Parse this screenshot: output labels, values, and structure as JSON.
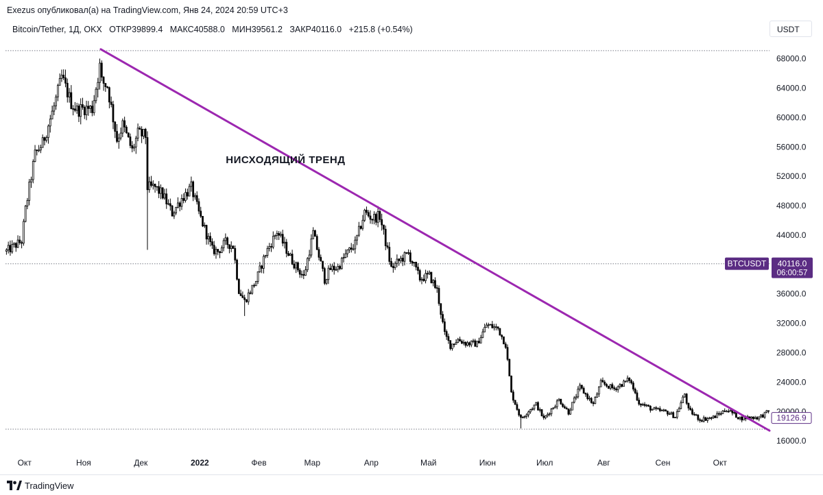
{
  "header": {
    "publisher": "Exezus опубликовал(а) на TradingView.com, Янв 24, 2024 20:59 UTC+3"
  },
  "legend": {
    "symbol": "Bitcoin/Tether, 1Д, OKX",
    "open_label": "ОТКР",
    "open": "39899.4",
    "high_label": "МАКС",
    "high": "40588.0",
    "low_label": "МИН",
    "low": "39561.2",
    "close_label": "ЗАКР",
    "close": "40116.0",
    "change": "+215.8 (+0.54%)"
  },
  "currency": "USDT",
  "colors": {
    "candle": "#000000",
    "trendline": "#9c27b0",
    "badge": "#5b2c83",
    "gridline": "#787b86",
    "text": "#131722"
  },
  "chart_data": {
    "type": "candlestick",
    "y_axis": {
      "ticks": [
        16000,
        20000,
        24000,
        28000,
        32000,
        36000,
        40000,
        44000,
        48000,
        52000,
        56000,
        60000,
        64000,
        68000
      ],
      "tick_labels": [
        "16000.0",
        "20000.0",
        "24000.0",
        "28000.0",
        "32000.0",
        "36000.0",
        "",
        "44000.0",
        "48000.0",
        "52000.0",
        "56000.0",
        "60000.0",
        "64000.0",
        "68000.0"
      ],
      "range": [
        14800,
        70400
      ]
    },
    "x_axis": {
      "labels": [
        {
          "text": "Окт",
          "date": "2021-10-01"
        },
        {
          "text": "Ноя",
          "date": "2021-11-01"
        },
        {
          "text": "Дек",
          "date": "2021-12-01"
        },
        {
          "text": "2022",
          "date": "2022-01-01",
          "bold": true
        },
        {
          "text": "Фев",
          "date": "2022-02-01"
        },
        {
          "text": "Мар",
          "date": "2022-03-01"
        },
        {
          "text": "Апр",
          "date": "2022-04-01"
        },
        {
          "text": "Май",
          "date": "2022-05-01"
        },
        {
          "text": "Июн",
          "date": "2022-06-01"
        },
        {
          "text": "Июл",
          "date": "2022-07-01"
        },
        {
          "text": "Авг",
          "date": "2022-08-01"
        },
        {
          "text": "Сен",
          "date": "2022-09-01"
        },
        {
          "text": "Окт",
          "date": "2022-10-01"
        }
      ],
      "range": [
        "2021-09-21",
        "2022-10-27"
      ]
    },
    "price_anchors": [
      [
        "2021-09-21",
        41800
      ],
      [
        "2021-09-29",
        43200
      ],
      [
        "2021-10-01",
        47500
      ],
      [
        "2021-10-06",
        55000
      ],
      [
        "2021-10-10",
        56500
      ],
      [
        "2021-10-16",
        61500
      ],
      [
        "2021-10-20",
        65500
      ],
      [
        "2021-10-25",
        62000
      ],
      [
        "2021-10-28",
        61000
      ],
      [
        "2021-11-01",
        61300
      ],
      [
        "2021-11-05",
        61200
      ],
      [
        "2021-11-09",
        67000
      ],
      [
        "2021-11-10",
        64900
      ],
      [
        "2021-11-13",
        64300
      ],
      [
        "2021-11-18",
        57000
      ],
      [
        "2021-11-21",
        59000
      ],
      [
        "2021-11-26",
        55500
      ],
      [
        "2021-11-29",
        57800
      ],
      [
        "2021-12-03",
        57500
      ],
      [
        "2021-12-04",
        50500
      ],
      [
        "2021-12-08",
        50500
      ],
      [
        "2021-12-12",
        49500
      ],
      [
        "2021-12-17",
        47000
      ],
      [
        "2021-12-22",
        49000
      ],
      [
        "2021-12-27",
        50500
      ],
      [
        "2021-12-31",
        47000
      ],
      [
        "2022-01-07",
        42000
      ],
      [
        "2022-01-10",
        41800
      ],
      [
        "2022-01-14",
        43000
      ],
      [
        "2022-01-18",
        42500
      ],
      [
        "2022-01-21",
        36500
      ],
      [
        "2022-01-24",
        35000
      ],
      [
        "2022-01-30",
        37800
      ],
      [
        "2022-02-04",
        41500
      ],
      [
        "2022-02-10",
        44500
      ],
      [
        "2022-02-14",
        42500
      ],
      [
        "2022-02-18",
        40500
      ],
      [
        "2022-02-24",
        38300
      ],
      [
        "2022-03-01",
        44300
      ],
      [
        "2022-03-07",
        38000
      ],
      [
        "2022-03-10",
        39400
      ],
      [
        "2022-03-14",
        39600
      ],
      [
        "2022-03-18",
        41300
      ],
      [
        "2022-03-23",
        42800
      ],
      [
        "2022-03-28",
        47100
      ],
      [
        "2022-04-01",
        46300
      ],
      [
        "2022-04-05",
        46600
      ],
      [
        "2022-04-11",
        39500
      ],
      [
        "2022-04-15",
        40500
      ],
      [
        "2022-04-20",
        41500
      ],
      [
        "2022-04-26",
        38100
      ],
      [
        "2022-05-01",
        38500
      ],
      [
        "2022-05-05",
        36500
      ],
      [
        "2022-05-09",
        30500
      ],
      [
        "2022-05-12",
        29000
      ],
      [
        "2022-05-16",
        29800
      ],
      [
        "2022-05-20",
        29300
      ],
      [
        "2022-05-26",
        29200
      ],
      [
        "2022-05-31",
        31800
      ],
      [
        "2022-06-06",
        31300
      ],
      [
        "2022-06-10",
        29100
      ],
      [
        "2022-06-13",
        22500
      ],
      [
        "2022-06-18",
        19000
      ],
      [
        "2022-06-22",
        20100
      ],
      [
        "2022-06-26",
        21000
      ],
      [
        "2022-06-30",
        19000
      ],
      [
        "2022-07-08",
        21600
      ],
      [
        "2022-07-13",
        19900
      ],
      [
        "2022-07-19",
        23300
      ],
      [
        "2022-07-26",
        21000
      ],
      [
        "2022-07-30",
        23900
      ],
      [
        "2022-08-06",
        23100
      ],
      [
        "2022-08-14",
        24400
      ],
      [
        "2022-08-19",
        21200
      ],
      [
        "2022-08-26",
        20300
      ],
      [
        "2022-09-03",
        19900
      ],
      [
        "2022-09-07",
        19300
      ],
      [
        "2022-09-12",
        22400
      ],
      [
        "2022-09-14",
        20200
      ],
      [
        "2022-09-20",
        18900
      ],
      [
        "2022-09-27",
        19200
      ],
      [
        "2022-10-04",
        20300
      ],
      [
        "2022-10-11",
        19100
      ],
      [
        "2022-10-16",
        19200
      ],
      [
        "2022-10-21",
        19200
      ],
      [
        "2022-10-26",
        20000
      ]
    ],
    "trendline": {
      "start": [
        "2021-11-10",
        69300
      ],
      "end": [
        "2022-10-27",
        17400
      ],
      "color": "#9c27b0"
    },
    "horizontal_levels": [
      69100,
      40100,
      17600
    ],
    "annotation": {
      "text": "НИСХОДЯЩИЙ  ТРЕНД",
      "date": "2022-02-15",
      "price": 53800
    },
    "badges": [
      {
        "symbol": "BTCUSDT",
        "price_label": "40116.0",
        "countdown": "06:00:57",
        "price": 40116
      },
      {
        "price_label": "19126.9",
        "price": 19127
      }
    ]
  },
  "footer": {
    "brand": "TradingView"
  }
}
